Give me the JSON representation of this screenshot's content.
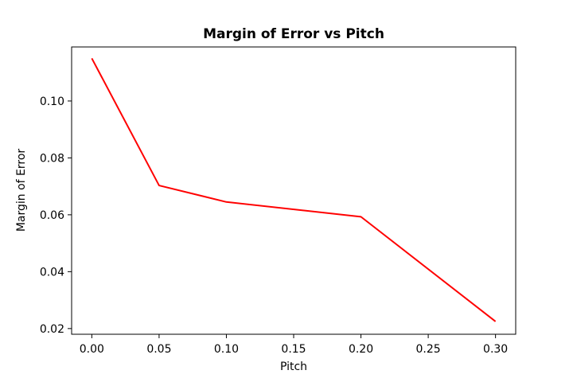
{
  "chart_data": {
    "type": "line",
    "title": "Margin of Error vs Pitch",
    "xlabel": "Pitch",
    "ylabel": "Margin of Error",
    "xlim": [
      -0.015,
      0.315
    ],
    "ylim": [
      0.018,
      0.119
    ],
    "xticks": [
      0.0,
      0.05,
      0.1,
      0.15,
      0.2,
      0.25,
      0.3
    ],
    "xtick_labels": [
      "0.00",
      "0.05",
      "0.10",
      "0.15",
      "0.20",
      "0.25",
      "0.30"
    ],
    "yticks": [
      0.02,
      0.04,
      0.06,
      0.08,
      0.1
    ],
    "ytick_labels": [
      "0.02",
      "0.04",
      "0.06",
      "0.08",
      "0.10"
    ],
    "grid": false,
    "series": [
      {
        "color": "#ff0000",
        "x": [
          0.0,
          0.05,
          0.1,
          0.2,
          0.3
        ],
        "y": [
          0.115,
          0.0703,
          0.0645,
          0.0593,
          0.0225
        ]
      }
    ]
  }
}
